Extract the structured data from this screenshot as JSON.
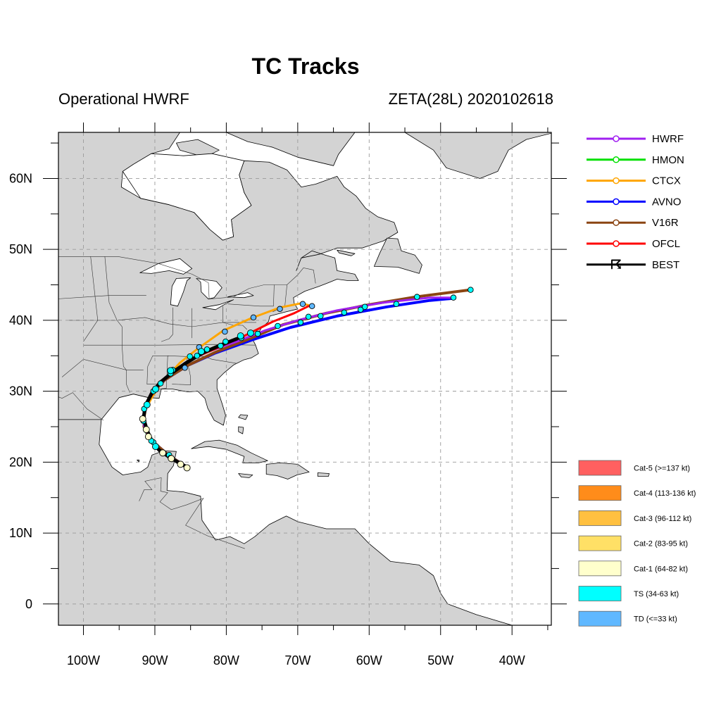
{
  "header": {
    "title": "TC Tracks",
    "left_subtitle": "Operational HWRF",
    "right_subtitle": "ZETA(28L) 2020102618"
  },
  "axes": {
    "lon_range": [
      -103.5,
      -34.5
    ],
    "lat_range": [
      -3,
      66.5
    ],
    "lon_ticks": [
      {
        "value": -100,
        "label": "100W"
      },
      {
        "value": -90,
        "label": "90W"
      },
      {
        "value": -80,
        "label": "80W"
      },
      {
        "value": -70,
        "label": "70W"
      },
      {
        "value": -60,
        "label": "60W"
      },
      {
        "value": -50,
        "label": "50W"
      },
      {
        "value": -40,
        "label": "40W"
      }
    ],
    "lat_ticks": [
      {
        "value": 0,
        "label": "0"
      },
      {
        "value": 10,
        "label": "10N"
      },
      {
        "value": 20,
        "label": "20N"
      },
      {
        "value": 30,
        "label": "30N"
      },
      {
        "value": 40,
        "label": "40N"
      },
      {
        "value": 50,
        "label": "50N"
      },
      {
        "value": 60,
        "label": "60N"
      }
    ],
    "grid": "dashed",
    "ocean_color": "#ffffff",
    "land_color": "#d3d3d3"
  },
  "legend": {
    "placement": "right",
    "models": [
      {
        "name": "HWRF",
        "color": "#a020f0"
      },
      {
        "name": "HMON",
        "color": "#00e000"
      },
      {
        "name": "CTCX",
        "color": "#ffa500"
      },
      {
        "name": "AVNO",
        "color": "#0000ff"
      },
      {
        "name": "V16R",
        "color": "#8b4513"
      },
      {
        "name": "OFCL",
        "color": "#ff0000"
      },
      {
        "name": "BEST",
        "color": "#000000"
      }
    ],
    "categories": [
      {
        "label": "Cat-5 (>=137 kt)",
        "color": "#ff6060"
      },
      {
        "label": "Cat-4 (113-136 kt)",
        "color": "#ff8c1a"
      },
      {
        "label": "Cat-3 (96-112 kt)",
        "color": "#ffc040"
      },
      {
        "label": "Cat-2 (83-95 kt)",
        "color": "#ffe066"
      },
      {
        "label": "Cat-1 (64-82 kt)",
        "color": "#ffffcc"
      },
      {
        "label": "TS (34-63 kt)",
        "color": "#00ffff"
      },
      {
        "label": "TD (<=33 kt)",
        "color": "#60b8ff"
      }
    ]
  },
  "chart_data": {
    "type": "line",
    "tracks": [
      {
        "name": "HWRF",
        "color": "#a020f0",
        "width": 3,
        "points": [
          [
            -85.5,
            19.3
          ],
          [
            -86.8,
            20.0
          ],
          [
            -88.2,
            20.8
          ],
          [
            -89.5,
            21.8
          ],
          [
            -90.6,
            23.0
          ],
          [
            -91.4,
            24.6
          ],
          [
            -91.7,
            26.2
          ],
          [
            -91.3,
            28.0
          ],
          [
            -90.2,
            30.0
          ],
          [
            -88.3,
            32.0
          ],
          [
            -85.8,
            34.0
          ],
          [
            -82.5,
            35.6
          ],
          [
            -78.5,
            37.0
          ],
          [
            -74.5,
            38.6
          ],
          [
            -70,
            40.0
          ],
          [
            -64.5,
            41.4
          ],
          [
            -58,
            42.5
          ],
          [
            -51.5,
            43.2
          ],
          [
            -48.2,
            43.2
          ]
        ],
        "markers": []
      },
      {
        "name": "HMON",
        "color": "#00e000",
        "width": 3,
        "points": [
          [
            -85.5,
            19.3
          ],
          [
            -88.0,
            20.8
          ],
          [
            -90.3,
            22.6
          ],
          [
            -91.5,
            24.6
          ],
          [
            -91.6,
            26.5
          ],
          [
            -91.0,
            28.5
          ],
          [
            -89.8,
            30.6
          ],
          [
            -87.3,
            32.8
          ],
          [
            -85.0,
            34.5
          ],
          [
            -82.0,
            36.0
          ],
          [
            -79,
            37.2
          ],
          [
            -77.5,
            37.8
          ]
        ],
        "markers": [
          [
            -88.0,
            21.0
          ],
          [
            -90.2,
            22.8
          ],
          [
            -89.2,
            31.1
          ],
          [
            -87.5,
            33.0
          ],
          [
            -85.1,
            34.9
          ],
          [
            -82.7,
            35.9
          ],
          [
            -80.1,
            37.0
          ]
        ]
      },
      {
        "name": "CTCX",
        "color": "#ffa500",
        "width": 3,
        "points": [
          [
            -85.5,
            19.3
          ],
          [
            -88.0,
            20.8
          ],
          [
            -90.5,
            22.8
          ],
          [
            -91.6,
            25.0
          ],
          [
            -91.3,
            27.5
          ],
          [
            -90.2,
            29.5
          ],
          [
            -88.8,
            31.5
          ],
          [
            -86.5,
            34.0
          ],
          [
            -84.0,
            36.0
          ],
          [
            -80.5,
            38.5
          ],
          [
            -76.5,
            40.3
          ],
          [
            -72.5,
            41.8
          ],
          [
            -69.5,
            42.4
          ],
          [
            -68.0,
            42.0
          ]
        ],
        "markers": [
          [
            -85.8,
            33.3
          ],
          [
            -83.8,
            36.2
          ],
          [
            -80.2,
            38.4
          ],
          [
            -76.2,
            40.4
          ],
          [
            -72.5,
            41.6
          ],
          [
            -69.3,
            42.3
          ],
          [
            -68.0,
            42.0
          ]
        ]
      },
      {
        "name": "AVNO",
        "color": "#0000ff",
        "width": 4,
        "points": [
          [
            -85.5,
            19.3
          ],
          [
            -88.0,
            20.9
          ],
          [
            -90.3,
            22.9
          ],
          [
            -91.5,
            25.0
          ],
          [
            -91.5,
            27.5
          ],
          [
            -90.5,
            29.7
          ],
          [
            -88.6,
            31.6
          ],
          [
            -85.5,
            33.6
          ],
          [
            -81.5,
            35.4
          ],
          [
            -76.5,
            37.2
          ],
          [
            -71.0,
            39.0
          ],
          [
            -64.5,
            40.6
          ],
          [
            -57.5,
            41.9
          ],
          [
            -51.5,
            42.8
          ],
          [
            -48.2,
            43.1
          ]
        ],
        "markers": [
          [
            -87.8,
            20.6
          ],
          [
            -90.5,
            23.0
          ],
          [
            -91.6,
            25.8
          ],
          [
            -91.5,
            27.5
          ],
          [
            -90.2,
            30.0
          ],
          [
            -87.8,
            32.5
          ],
          [
            -84.1,
            35.0
          ],
          [
            -80.8,
            36.4
          ],
          [
            -77.9,
            37.5
          ],
          [
            -75.6,
            38.1
          ],
          [
            -72.8,
            39.2
          ],
          [
            -69.6,
            39.7
          ],
          [
            -66.8,
            40.6
          ],
          [
            -63.5,
            41.1
          ],
          [
            -61.2,
            41.5
          ],
          [
            -56.2,
            42.3
          ],
          [
            -48.2,
            43.2
          ]
        ]
      },
      {
        "name": "V16R",
        "color": "#8b4513",
        "width": 4,
        "points": [
          [
            -85.5,
            19.3
          ],
          [
            -88.0,
            20.9
          ],
          [
            -90.3,
            22.9
          ],
          [
            -91.5,
            25.0
          ],
          [
            -91.5,
            27.5
          ],
          [
            -90.5,
            29.7
          ],
          [
            -88.6,
            31.6
          ],
          [
            -85.5,
            33.6
          ],
          [
            -81.5,
            35.5
          ],
          [
            -77,
            37.3
          ],
          [
            -72,
            39.4
          ],
          [
            -66,
            41.0
          ],
          [
            -60,
            42.2
          ],
          [
            -53.5,
            43.3
          ],
          [
            -45.8,
            44.3
          ]
        ],
        "markers": [
          [
            -68.5,
            40.5
          ],
          [
            -60.6,
            41.9
          ],
          [
            -53.3,
            43.3
          ],
          [
            -45.8,
            44.3
          ]
        ]
      },
      {
        "name": "OFCL",
        "color": "#ff0000",
        "width": 3,
        "points": [
          [
            -85.5,
            19.3
          ],
          [
            -88.0,
            20.7
          ],
          [
            -90.0,
            22.3
          ],
          [
            -91.2,
            24.3
          ],
          [
            -91.5,
            26.5
          ],
          [
            -91.0,
            28.5
          ],
          [
            -89.8,
            30.5
          ],
          [
            -87.8,
            32.5
          ],
          [
            -85.0,
            34.5
          ],
          [
            -81.5,
            36.0
          ],
          [
            -77.5,
            37.8
          ],
          [
            -73.5,
            39.8
          ],
          [
            -70.5,
            41.0
          ],
          [
            -68.5,
            42.0
          ]
        ],
        "markers": []
      },
      {
        "name": "BEST",
        "color": "#000000",
        "width": 5,
        "points": [
          [
            -85.5,
            19.3
          ],
          [
            -86.8,
            20.0
          ],
          [
            -88.1,
            20.8
          ],
          [
            -89.4,
            21.7
          ],
          [
            -90.4,
            22.9
          ],
          [
            -91.1,
            24.5
          ],
          [
            -91.6,
            26.2
          ],
          [
            -91.3,
            28.0
          ],
          [
            -90.5,
            29.6
          ],
          [
            -89.3,
            31.2
          ],
          [
            -87.6,
            32.6
          ],
          [
            -85.6,
            34.0
          ],
          [
            -83.3,
            35.4
          ],
          [
            -80.8,
            36.5
          ],
          [
            -78.5,
            37.4
          ]
        ],
        "markers": [
          [
            -85.5,
            19.2
          ],
          [
            -86.4,
            19.7
          ],
          [
            -87.7,
            20.5
          ],
          [
            -88.9,
            21.3
          ],
          [
            -89.9,
            22.2
          ],
          [
            -90.9,
            23.6
          ],
          [
            -91.2,
            24.6
          ],
          [
            -91.7,
            26.1
          ],
          [
            -91.1,
            28.1
          ],
          [
            -89.9,
            30.3
          ],
          [
            -87.8,
            32.9
          ],
          [
            -83.5,
            35.6
          ],
          [
            -78.0,
            37.8
          ],
          [
            -76.6,
            38.2
          ]
        ]
      }
    ]
  }
}
